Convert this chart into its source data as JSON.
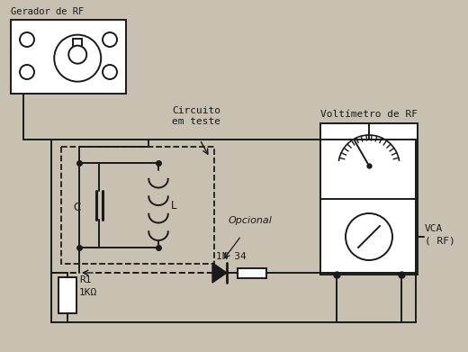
{
  "background_color": "#c8c0b0",
  "line_color": "#1a1a1a",
  "labels": {
    "gerador": "Gerador de RF",
    "circuito": "Circuito\nem teste",
    "voltimetro": "Voltímetro de RF",
    "opcional": "Opcional",
    "diode": "1N 34",
    "C": "C",
    "L": "L",
    "R1": "R1",
    "R1val": "1KΩ",
    "VCA": "VCA",
    "RF": "( RF)"
  }
}
